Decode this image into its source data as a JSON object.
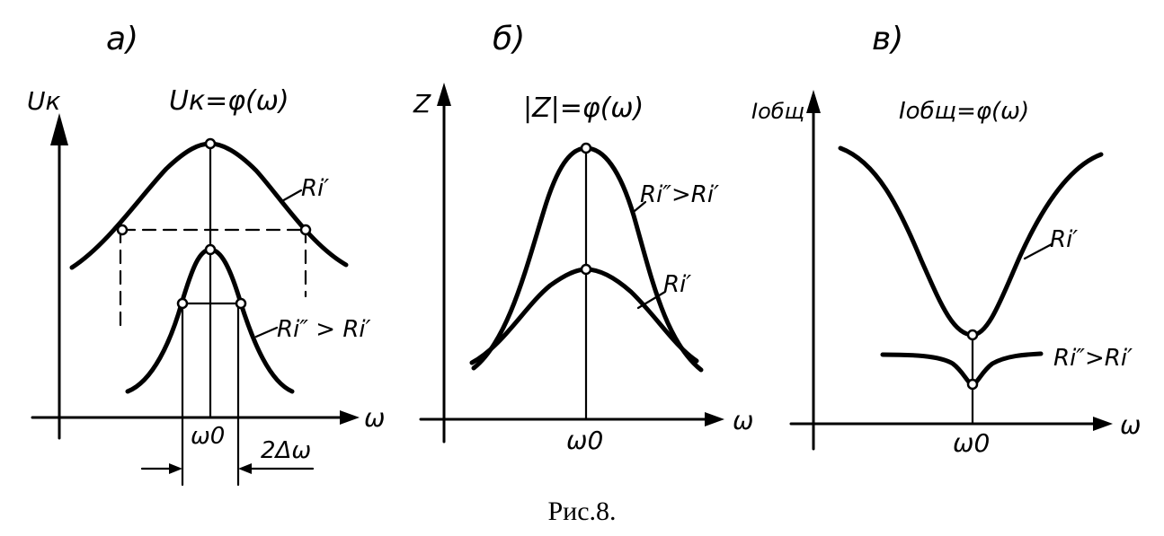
{
  "caption": "Рис.8.",
  "panel_a": {
    "letter": "а)",
    "y_axis": "Uк",
    "formula": "Uк=φ(ω)",
    "curve1_label": "Ri′",
    "curve2_label": "Ri″ > Ri′",
    "x_axis": "ω",
    "center_label": "ω0",
    "bandwidth_label": "2Δω"
  },
  "panel_b": {
    "letter": "б)",
    "y_axis": "Z",
    "formula": "|Z|=φ(ω)",
    "curve1_label": "Ri″>Ri′",
    "curve2_label": "Ri′",
    "x_axis": "ω",
    "center_label": "ω0"
  },
  "panel_c": {
    "letter": "в)",
    "y_axis": "Iобщ",
    "formula": "Iобщ=φ(ω)",
    "curve1_label": "Ri′",
    "curve2_label": "Ri″>Ri′",
    "x_axis": "ω",
    "center_label": "ω0"
  }
}
